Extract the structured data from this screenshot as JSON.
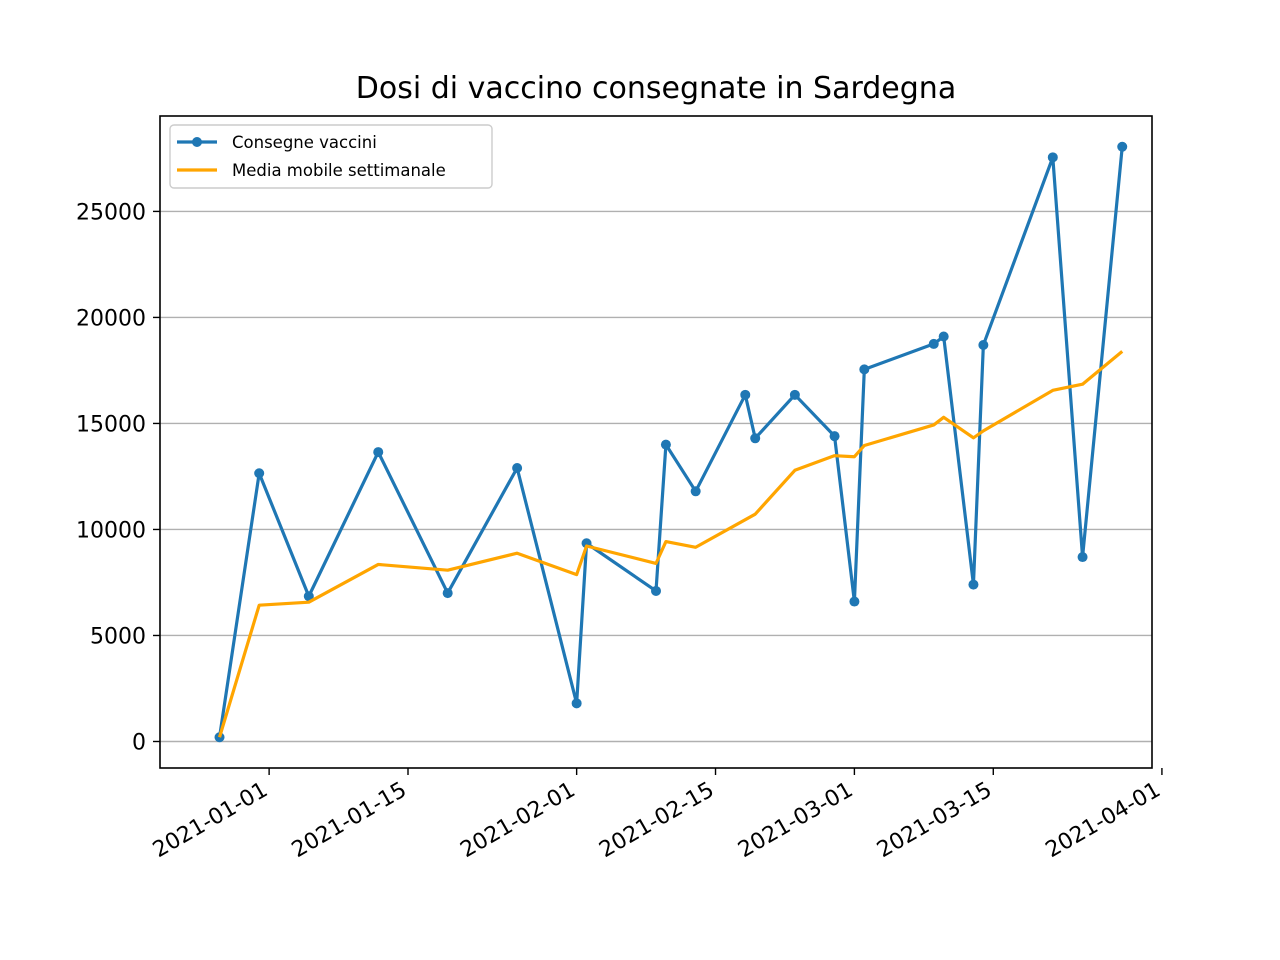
{
  "chart_data": {
    "type": "line",
    "title": "Dosi di vaccino consegnate in Sardegna",
    "xlabel": "",
    "ylabel": "",
    "ylim": [
      -1250,
      29500
    ],
    "xlim": [
      "2020-12-21",
      "2021-03-31"
    ],
    "yticks": [
      0,
      5000,
      10000,
      15000,
      20000,
      25000
    ],
    "xticks": [
      "2021-01-01",
      "2021-01-15",
      "2021-02-01",
      "2021-02-15",
      "2021-03-01",
      "2021-03-15",
      "2021-04-01"
    ],
    "grid": "horizontal",
    "legend": "top-left",
    "series": [
      {
        "name": "Consegne vaccini",
        "color": "#1f77b4",
        "marker": "circle",
        "points": [
          {
            "x": "2020-12-27",
            "y": 200
          },
          {
            "x": "2020-12-31",
            "y": 12650
          },
          {
            "x": "2021-01-05",
            "y": 6850
          },
          {
            "x": "2021-01-12",
            "y": 13650
          },
          {
            "x": "2021-01-19",
            "y": 7000
          },
          {
            "x": "2021-01-26",
            "y": 12900
          },
          {
            "x": "2021-02-01",
            "y": 1800
          },
          {
            "x": "2021-02-02",
            "y": 9350
          },
          {
            "x": "2021-02-09",
            "y": 7100
          },
          {
            "x": "2021-02-10",
            "y": 14000
          },
          {
            "x": "2021-02-13",
            "y": 11800
          },
          {
            "x": "2021-02-18",
            "y": 16350
          },
          {
            "x": "2021-02-19",
            "y": 14300
          },
          {
            "x": "2021-02-23",
            "y": 16350
          },
          {
            "x": "2021-02-27",
            "y": 14400
          },
          {
            "x": "2021-03-01",
            "y": 6600
          },
          {
            "x": "2021-03-02",
            "y": 17550
          },
          {
            "x": "2021-03-09",
            "y": 18750
          },
          {
            "x": "2021-03-10",
            "y": 19100
          },
          {
            "x": "2021-03-13",
            "y": 7400
          },
          {
            "x": "2021-03-14",
            "y": 18700
          },
          {
            "x": "2021-03-21",
            "y": 27550
          },
          {
            "x": "2021-03-24",
            "y": 8700
          },
          {
            "x": "2021-03-28",
            "y": 28050
          }
        ]
      },
      {
        "name": "Media mobile settimanale",
        "color": "#ffa500",
        "marker": "none",
        "points": [
          {
            "x": "2020-12-27",
            "y": 200
          },
          {
            "x": "2020-12-31",
            "y": 6430
          },
          {
            "x": "2021-01-05",
            "y": 6570
          },
          {
            "x": "2021-01-12",
            "y": 8350
          },
          {
            "x": "2021-01-19",
            "y": 8080
          },
          {
            "x": "2021-01-26",
            "y": 8880
          },
          {
            "x": "2021-02-01",
            "y": 7870
          },
          {
            "x": "2021-02-02",
            "y": 9220
          },
          {
            "x": "2021-02-09",
            "y": 8400
          },
          {
            "x": "2021-02-10",
            "y": 9430
          },
          {
            "x": "2021-02-13",
            "y": 9160
          },
          {
            "x": "2021-02-19",
            "y": 10720
          },
          {
            "x": "2021-02-23",
            "y": 12790
          },
          {
            "x": "2021-02-27",
            "y": 13480
          },
          {
            "x": "2021-03-01",
            "y": 13430
          },
          {
            "x": "2021-03-02",
            "y": 13960
          },
          {
            "x": "2021-03-09",
            "y": 14930
          },
          {
            "x": "2021-03-10",
            "y": 15290
          },
          {
            "x": "2021-03-13",
            "y": 14320
          },
          {
            "x": "2021-03-14",
            "y": 14650
          },
          {
            "x": "2021-03-21",
            "y": 16560
          },
          {
            "x": "2021-03-24",
            "y": 16850
          },
          {
            "x": "2021-03-28",
            "y": 18400
          }
        ]
      }
    ]
  }
}
